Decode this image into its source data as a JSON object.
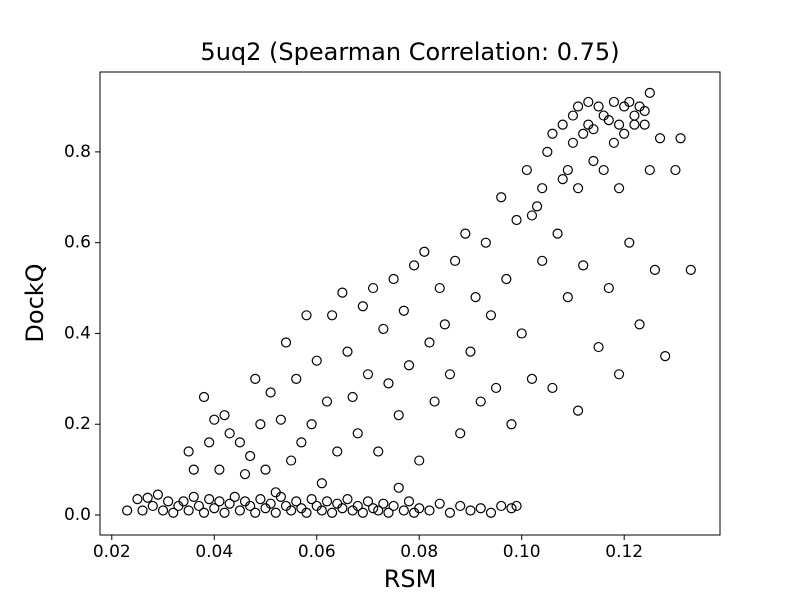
{
  "chart_data": {
    "type": "scatter",
    "title": "5uq2 (Spearman Correlation: 0.75)",
    "x_label": "RSM",
    "y_label": "DockQ",
    "xlim": [
      0.0177,
      0.1387
    ],
    "ylim": [
      -0.044,
      0.976
    ],
    "xticks": [
      0.02,
      0.04,
      0.06,
      0.08,
      {
        "value": 0.1,
        "label": "0.10"
      },
      0.12
    ],
    "yticks": [
      {
        "value": 0,
        "label": "0.0"
      },
      0.2,
      0.4,
      0.6,
      0.8
    ],
    "marker_color": "#000000",
    "x": [
      0.023,
      0.025,
      0.026,
      0.027,
      0.028,
      0.029,
      0.03,
      0.031,
      0.032,
      0.033,
      0.034,
      0.035,
      0.036,
      0.037,
      0.038,
      0.039,
      0.04,
      0.041,
      0.042,
      0.043,
      0.044,
      0.045,
      0.046,
      0.047,
      0.048,
      0.049,
      0.05,
      0.051,
      0.052,
      0.053,
      0.054,
      0.055,
      0.056,
      0.057,
      0.058,
      0.059,
      0.06,
      0.061,
      0.062,
      0.063,
      0.064,
      0.065,
      0.066,
      0.067,
      0.068,
      0.069,
      0.07,
      0.071,
      0.072,
      0.073,
      0.074,
      0.075,
      0.076,
      0.077,
      0.078,
      0.079,
      0.08,
      0.082,
      0.084,
      0.086,
      0.088,
      0.09,
      0.092,
      0.094,
      0.096,
      0.098,
      0.099,
      0.035,
      0.036,
      0.038,
      0.039,
      0.04,
      0.041,
      0.042,
      0.043,
      0.045,
      0.046,
      0.047,
      0.048,
      0.049,
      0.05,
      0.051,
      0.052,
      0.053,
      0.054,
      0.055,
      0.056,
      0.057,
      0.058,
      0.059,
      0.06,
      0.061,
      0.062,
      0.063,
      0.064,
      0.065,
      0.066,
      0.067,
      0.068,
      0.069,
      0.07,
      0.071,
      0.072,
      0.073,
      0.074,
      0.075,
      0.076,
      0.077,
      0.078,
      0.079,
      0.08,
      0.081,
      0.082,
      0.083,
      0.084,
      0.085,
      0.086,
      0.087,
      0.088,
      0.089,
      0.09,
      0.091,
      0.092,
      0.093,
      0.094,
      0.095,
      0.096,
      0.097,
      0.098,
      0.099,
      0.1,
      0.101,
      0.102,
      0.103,
      0.104,
      0.105,
      0.106,
      0.107,
      0.108,
      0.109,
      0.11,
      0.111,
      0.112,
      0.113,
      0.114,
      0.115,
      0.116,
      0.117,
      0.118,
      0.119,
      0.12,
      0.121,
      0.122,
      0.123,
      0.124,
      0.125,
      0.126,
      0.127,
      0.128,
      0.13,
      0.131,
      0.133,
      0.106,
      0.108,
      0.11,
      0.111,
      0.112,
      0.113,
      0.114,
      0.115,
      0.117,
      0.118,
      0.119,
      0.12,
      0.121,
      0.122,
      0.123,
      0.124,
      0.125,
      0.109,
      0.111,
      0.116,
      0.119,
      0.104,
      0.102
    ],
    "values": [
      0.01,
      0.035,
      0.01,
      0.038,
      0.02,
      0.045,
      0.01,
      0.03,
      0.005,
      0.02,
      0.03,
      0.01,
      0.04,
      0.02,
      0.005,
      0.035,
      0.015,
      0.03,
      0.005,
      0.025,
      0.04,
      0.01,
      0.03,
      0.02,
      0.005,
      0.035,
      0.015,
      0.025,
      0.005,
      0.04,
      0.02,
      0.01,
      0.03,
      0.015,
      0.005,
      0.035,
      0.02,
      0.01,
      0.03,
      0.005,
      0.025,
      0.015,
      0.035,
      0.01,
      0.02,
      0.005,
      0.03,
      0.015,
      0.01,
      0.025,
      0.005,
      0.02,
      0.06,
      0.01,
      0.03,
      0.005,
      0.015,
      0.01,
      0.025,
      0.005,
      0.02,
      0.01,
      0.015,
      0.005,
      0.02,
      0.015,
      0.02,
      0.14,
      0.1,
      0.26,
      0.16,
      0.21,
      0.1,
      0.22,
      0.18,
      0.16,
      0.09,
      0.13,
      0.3,
      0.2,
      0.1,
      0.27,
      0.05,
      0.21,
      0.38,
      0.12,
      0.3,
      0.16,
      0.44,
      0.2,
      0.34,
      0.07,
      0.25,
      0.44,
      0.14,
      0.49,
      0.36,
      0.26,
      0.18,
      0.46,
      0.31,
      0.5,
      0.14,
      0.41,
      0.29,
      0.52,
      0.22,
      0.45,
      0.33,
      0.55,
      0.12,
      0.58,
      0.38,
      0.25,
      0.5,
      0.42,
      0.31,
      0.56,
      0.18,
      0.62,
      0.36,
      0.48,
      0.25,
      0.6,
      0.44,
      0.28,
      0.7,
      0.52,
      0.2,
      0.65,
      0.4,
      0.76,
      0.3,
      0.68,
      0.56,
      0.8,
      0.28,
      0.62,
      0.74,
      0.48,
      0.82,
      0.23,
      0.55,
      0.86,
      0.78,
      0.37,
      0.88,
      0.5,
      0.82,
      0.31,
      0.9,
      0.6,
      0.86,
      0.42,
      0.89,
      0.76,
      0.54,
      0.83,
      0.35,
      0.76,
      0.83,
      0.54,
      0.84,
      0.86,
      0.88,
      0.9,
      0.84,
      0.91,
      0.85,
      0.9,
      0.87,
      0.91,
      0.86,
      0.84,
      0.91,
      0.88,
      0.9,
      0.86,
      0.93,
      0.76,
      0.72,
      0.76,
      0.72,
      0.72,
      0.66
    ]
  }
}
